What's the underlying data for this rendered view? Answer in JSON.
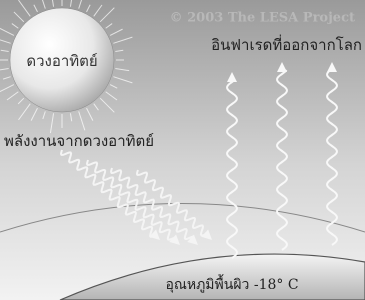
{
  "watermark": "© 2003 The LESA Project",
  "sun_label": "ดวงอาทิตย์",
  "infrared_label": "อินฟาเรดที่ออกจากโลก",
  "solar_energy_label": "พลังงานจากดวงอาทิตย์",
  "surface_temperature_label": "อุณหภูมิพื้นผิว -18° C"
}
